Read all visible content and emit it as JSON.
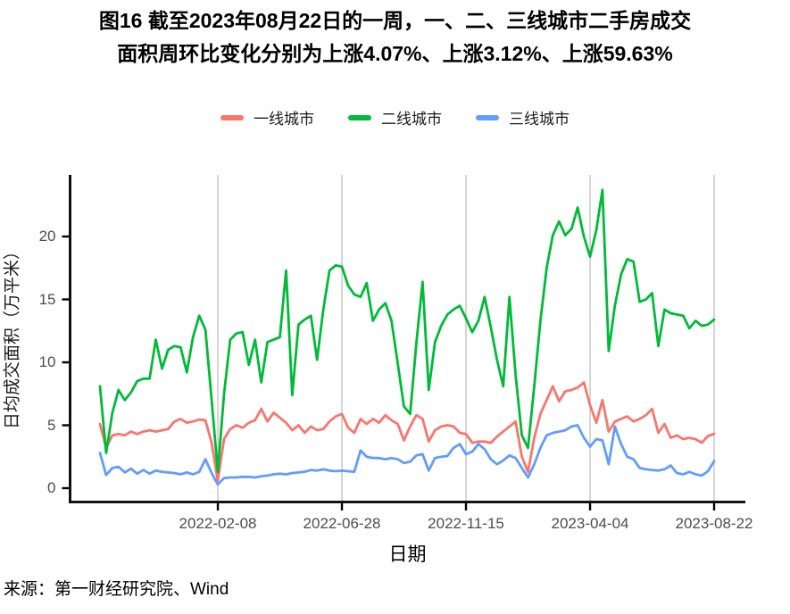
{
  "title": {
    "line1": "图16  截至2023年08月22日的一周，一、二、三线城市二手房成交",
    "line2": "面积周环比变化分别为上涨4.07%、上涨3.12%、上涨59.63%"
  },
  "legend": {
    "items": [
      {
        "label": "一线城市",
        "color": "#F8766D"
      },
      {
        "label": "二线城市",
        "color": "#00BA38"
      },
      {
        "label": "三线城市",
        "color": "#619CFF"
      }
    ]
  },
  "source": "来源：第一财经研究院、Wind",
  "chart_data": {
    "type": "line",
    "xlabel": "日期",
    "ylabel": "日均成交面积（万平米）",
    "x_frequency": "weekly",
    "n_points": 100,
    "x_tick_labels": [
      "2022-02-08",
      "2022-06-28",
      "2022-11-15",
      "2023-04-04",
      "2023-08-22"
    ],
    "x_tick_indices": [
      19,
      39,
      59,
      79,
      99
    ],
    "yticks": [
      0,
      5,
      10,
      15,
      20
    ],
    "ylim": [
      0,
      24.8
    ],
    "grid": "vertical-only",
    "legend_position": "top",
    "last_week_change_pct": {
      "一线城市": 4.07,
      "二线城市": 3.12,
      "三线城市": 59.63
    },
    "series": [
      {
        "name": "一线城市",
        "color": "#F8766D",
        "values": [
          5.1,
          3.2,
          4.2,
          4.3,
          4.2,
          4.5,
          4.3,
          4.5,
          4.6,
          4.5,
          4.6,
          4.7,
          5.3,
          5.5,
          5.2,
          5.3,
          5.45,
          5.4,
          3.6,
          0.6,
          3.9,
          4.7,
          5.0,
          4.8,
          5.2,
          5.4,
          6.3,
          5.3,
          6.0,
          5.6,
          5.2,
          4.6,
          5.0,
          4.4,
          4.9,
          4.6,
          4.7,
          5.3,
          5.7,
          5.9,
          4.8,
          4.4,
          5.5,
          5.1,
          5.5,
          5.2,
          5.8,
          5.4,
          5.1,
          3.8,
          4.9,
          5.8,
          5.5,
          3.7,
          4.6,
          4.9,
          5.0,
          4.9,
          4.4,
          4.3,
          3.6,
          3.7,
          3.7,
          3.6,
          4.1,
          4.5,
          4.9,
          5.3,
          2.5,
          1.3,
          4.0,
          5.9,
          7.0,
          8.1,
          6.9,
          7.7,
          7.8,
          8.0,
          8.4,
          6.6,
          5.2,
          7.0,
          4.5,
          5.3,
          5.5,
          5.7,
          5.3,
          5.5,
          5.8,
          6.3,
          4.4,
          5.1,
          4.0,
          4.2,
          3.9,
          4.0,
          3.9,
          3.6,
          4.15,
          4.32
        ]
      },
      {
        "name": "二线城市",
        "color": "#00BA38",
        "values": [
          8.1,
          2.8,
          6.0,
          7.8,
          7.0,
          7.6,
          8.5,
          8.7,
          8.7,
          11.8,
          9.5,
          11.0,
          11.3,
          11.2,
          9.2,
          12.0,
          13.7,
          12.6,
          7.0,
          1.3,
          7.5,
          11.8,
          12.3,
          12.4,
          9.8,
          11.8,
          8.4,
          11.6,
          11.8,
          12.0,
          17.3,
          7.4,
          13.0,
          13.4,
          13.7,
          10.2,
          14.2,
          17.3,
          17.7,
          17.6,
          16.1,
          15.4,
          15.2,
          16.3,
          13.3,
          14.2,
          14.7,
          13.3,
          9.9,
          6.5,
          5.9,
          11.5,
          16.4,
          7.8,
          11.6,
          12.9,
          13.8,
          14.2,
          14.5,
          13.5,
          12.4,
          13.3,
          15.2,
          12.8,
          10.2,
          8.1,
          15.2,
          9.0,
          4.2,
          3.2,
          8.1,
          13.3,
          17.5,
          20.1,
          21.2,
          20.1,
          20.6,
          22.3,
          20.0,
          18.4,
          20.5,
          23.7,
          10.9,
          14.5,
          17.0,
          18.2,
          18.0,
          14.8,
          15.0,
          15.5,
          11.3,
          14.2,
          13.9,
          13.8,
          13.7,
          12.7,
          13.3,
          12.9,
          13.0,
          13.4
        ]
      },
      {
        "name": "三线城市",
        "color": "#619CFF",
        "values": [
          2.8,
          1.05,
          1.6,
          1.7,
          1.25,
          1.55,
          1.15,
          1.45,
          1.15,
          1.4,
          1.3,
          1.25,
          1.2,
          1.1,
          1.25,
          1.1,
          1.3,
          2.3,
          1.2,
          0.3,
          0.8,
          0.85,
          0.85,
          0.9,
          0.9,
          0.85,
          0.95,
          1.0,
          1.1,
          1.15,
          1.1,
          1.2,
          1.25,
          1.3,
          1.45,
          1.4,
          1.5,
          1.4,
          1.35,
          1.4,
          1.35,
          1.3,
          3.0,
          2.5,
          2.4,
          2.4,
          2.3,
          2.4,
          2.3,
          2.0,
          2.1,
          2.6,
          2.7,
          1.4,
          2.4,
          2.5,
          2.55,
          3.2,
          3.5,
          2.7,
          2.9,
          3.5,
          3.1,
          2.3,
          1.9,
          2.2,
          2.6,
          2.4,
          1.6,
          0.85,
          1.9,
          3.2,
          4.2,
          4.4,
          4.5,
          4.6,
          4.9,
          5.0,
          4.0,
          3.3,
          3.9,
          3.8,
          1.9,
          4.9,
          3.5,
          2.5,
          2.3,
          1.6,
          1.5,
          1.45,
          1.4,
          1.5,
          1.8,
          1.2,
          1.1,
          1.3,
          1.1,
          1.0,
          1.35,
          2.15
        ]
      }
    ]
  }
}
